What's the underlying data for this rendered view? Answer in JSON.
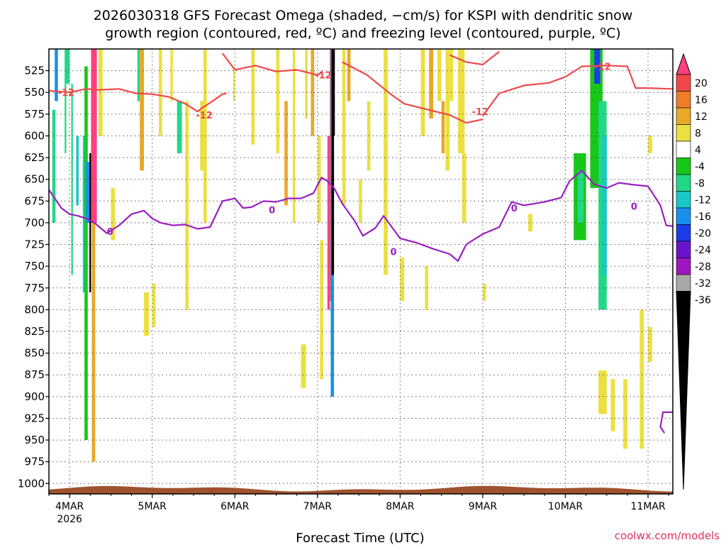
{
  "colors": {
    "dgz": "#f04848",
    "freezing": "#9a1fc0",
    "terrain": "#a0522d",
    "credit": "#e03060",
    "grid": "#888888"
  },
  "chart_data": {
    "type": "heatmap",
    "title_lines": [
      "2026030318 GFS Forecast Omega (shaded, −cm/s) for KSPI with dendritic snow",
      "growth region (contoured, red, ºC) and freezing level (contoured, purple, ºC)"
    ],
    "xlabel": "Forecast Time (UTC)",
    "credit": "coolwx.com/models",
    "x_range_days": [
      -0.25,
      7.3
    ],
    "x_ticks": [
      {
        "day": 0,
        "label": "4MAR",
        "sub": "2026"
      },
      {
        "day": 1,
        "label": "5MAR",
        "sub": ""
      },
      {
        "day": 2,
        "label": "6MAR",
        "sub": ""
      },
      {
        "day": 3,
        "label": "7MAR",
        "sub": ""
      },
      {
        "day": 4,
        "label": "8MAR",
        "sub": ""
      },
      {
        "day": 5,
        "label": "9MAR",
        "sub": ""
      },
      {
        "day": 6,
        "label": "10MAR",
        "sub": ""
      },
      {
        "day": 7,
        "label": "11MAR",
        "sub": ""
      }
    ],
    "y_range_hpa": [
      1012,
      500
    ],
    "y_ticks": [
      "525",
      "550",
      "575",
      "600",
      "625",
      "650",
      "675",
      "700",
      "725",
      "750",
      "775",
      "800",
      "825",
      "850",
      "875",
      "900",
      "925",
      "950",
      "975",
      "1000"
    ],
    "colorbar": {
      "labels": [
        "20",
        "16",
        "12",
        "8",
        "4",
        "-4",
        "-8",
        "-12",
        "-16",
        "-20",
        "-24",
        "-28",
        "-32",
        "-36"
      ],
      "colors": [
        "#ff3f7f",
        "#f04848",
        "#f07c28",
        "#e8a828",
        "#ece040",
        "#ffffff",
        "#18c818",
        "#22d888",
        "#18c8c8",
        "#1890f0",
        "#1c3ce8",
        "#6a14d0",
        "#a016c0",
        "#a8a8a8",
        "#000000"
      ]
    },
    "dgz_contour": {
      "label": "-12",
      "upper": [
        [
          -0.25,
          548
        ],
        [
          0.0,
          550
        ],
        [
          0.2,
          546
        ],
        [
          0.35,
          547
        ],
        [
          0.6,
          546
        ],
        [
          0.8,
          551
        ],
        [
          1.0,
          552
        ],
        [
          1.2,
          555
        ],
        [
          1.4,
          563
        ],
        [
          1.55,
          572
        ],
        [
          1.6,
          568
        ],
        [
          1.7,
          562
        ],
        [
          1.85,
          552
        ],
        [
          1.9,
          551
        ]
      ],
      "upper2": [
        [
          1.85,
          505
        ],
        [
          2.0,
          524
        ],
        [
          2.25,
          519
        ],
        [
          2.5,
          526
        ],
        [
          2.75,
          524
        ],
        [
          3.0,
          530
        ],
        [
          3.05,
          527
        ]
      ],
      "upper3": [
        [
          3.3,
          515
        ],
        [
          3.6,
          530
        ],
        [
          3.9,
          553
        ],
        [
          4.05,
          563
        ],
        [
          4.3,
          569
        ],
        [
          4.6,
          576
        ],
        [
          4.8,
          585
        ],
        [
          5.0,
          581
        ]
      ],
      "upper4": [
        [
          5.0,
          577
        ],
        [
          5.2,
          551
        ],
        [
          5.5,
          542
        ],
        [
          5.8,
          539
        ],
        [
          6.0,
          532
        ],
        [
          6.2,
          520
        ],
        [
          6.5,
          519
        ],
        [
          6.75,
          520
        ],
        [
          6.85,
          545
        ],
        [
          7.0,
          545
        ],
        [
          7.3,
          546
        ]
      ],
      "upper5": [
        [
          5.2,
          503
        ],
        [
          5.0,
          518
        ],
        [
          4.8,
          515
        ],
        [
          4.6,
          507
        ]
      ]
    },
    "freezing_contour": {
      "label": "0",
      "points": [
        [
          -0.25,
          662
        ],
        [
          -0.1,
          683
        ],
        [
          0.0,
          690
        ],
        [
          0.1,
          692
        ],
        [
          0.2,
          695
        ],
        [
          0.3,
          700
        ],
        [
          0.45,
          712
        ],
        [
          0.6,
          703
        ],
        [
          0.75,
          690
        ],
        [
          0.9,
          686
        ],
        [
          1.0,
          695
        ],
        [
          1.1,
          700
        ],
        [
          1.25,
          703
        ],
        [
          1.4,
          702
        ],
        [
          1.55,
          707
        ],
        [
          1.7,
          705
        ],
        [
          1.85,
          675
        ],
        [
          2.0,
          672
        ],
        [
          2.1,
          683
        ],
        [
          2.2,
          682
        ],
        [
          2.35,
          675
        ],
        [
          2.5,
          676
        ],
        [
          2.65,
          672
        ],
        [
          2.8,
          672
        ],
        [
          2.95,
          666
        ],
        [
          3.05,
          648
        ],
        [
          3.12,
          652
        ],
        [
          3.2,
          660
        ],
        [
          3.3,
          678
        ],
        [
          3.45,
          698
        ],
        [
          3.55,
          715
        ],
        [
          3.7,
          706
        ],
        [
          3.8,
          692
        ],
        [
          3.9,
          705
        ],
        [
          4.0,
          718
        ],
        [
          4.2,
          723
        ],
        [
          4.4,
          730
        ],
        [
          4.6,
          736
        ],
        [
          4.7,
          744
        ],
        [
          4.8,
          725
        ],
        [
          5.0,
          713
        ],
        [
          5.2,
          705
        ],
        [
          5.35,
          676
        ],
        [
          5.5,
          680
        ],
        [
          5.75,
          676
        ],
        [
          5.95,
          671
        ],
        [
          6.05,
          652
        ],
        [
          6.2,
          640
        ],
        [
          6.35,
          656
        ],
        [
          6.5,
          660
        ],
        [
          6.65,
          654
        ],
        [
          6.8,
          656
        ],
        [
          7.0,
          658
        ],
        [
          7.15,
          680
        ],
        [
          7.22,
          703
        ],
        [
          7.3,
          704
        ]
      ],
      "tail": [
        [
          7.2,
          942
        ],
        [
          7.15,
          935
        ],
        [
          7.18,
          918
        ],
        [
          7.3,
          918
        ]
      ]
    },
    "omega_cells": [
      {
        "d0": -0.25,
        "d1": -0.15,
        "p0": 510,
        "p1": 960,
        "c": 5
      },
      {
        "d0": -0.21,
        "d1": -0.17,
        "p0": 570,
        "p1": 700,
        "c": 7
      },
      {
        "d0": -0.18,
        "d1": -0.14,
        "p0": 500,
        "p1": 560,
        "c": 9
      },
      {
        "d0": -0.14,
        "d1": -0.08,
        "p0": 500,
        "p1": 900,
        "c": 5
      },
      {
        "d0": -0.06,
        "d1": 0.0,
        "p0": 500,
        "p1": 620,
        "c": 7
      },
      {
        "d0": -0.04,
        "d1": 0.02,
        "p0": 540,
        "p1": 880,
        "c": 5
      },
      {
        "d0": 0.02,
        "d1": 0.08,
        "p0": 540,
        "p1": 760,
        "c": 7
      },
      {
        "d0": 0.04,
        "d1": 0.1,
        "p0": 520,
        "p1": 880,
        "c": 5
      },
      {
        "d0": 0.08,
        "d1": 0.11,
        "p0": 600,
        "p1": 680,
        "c": 8
      },
      {
        "d0": 0.12,
        "d1": 0.16,
        "p0": 500,
        "p1": 640,
        "c": 5
      },
      {
        "d0": 0.16,
        "d1": 0.2,
        "p0": 600,
        "p1": 780,
        "c": 8
      },
      {
        "d0": 0.18,
        "d1": 0.22,
        "p0": 520,
        "p1": 950,
        "c": 6
      },
      {
        "d0": 0.2,
        "d1": 0.24,
        "p0": 630,
        "p1": 700,
        "c": 9
      },
      {
        "d0": 0.24,
        "d1": 0.26,
        "p0": 620,
        "p1": 780,
        "c": 14
      },
      {
        "d0": 0.26,
        "d1": 0.33,
        "p0": 500,
        "p1": 700,
        "c": 0
      },
      {
        "d0": 0.27,
        "d1": 0.31,
        "p0": 700,
        "p1": 975,
        "c": 3
      },
      {
        "d0": 0.35,
        "d1": 0.4,
        "p0": 500,
        "p1": 600,
        "c": 4
      },
      {
        "d0": 0.5,
        "d1": 0.55,
        "p0": 660,
        "p1": 720,
        "c": 4
      },
      {
        "d0": 0.72,
        "d1": 0.78,
        "p0": 800,
        "p1": 950,
        "c": 5
      },
      {
        "d0": 0.78,
        "d1": 0.82,
        "p0": 520,
        "p1": 940,
        "c": 5
      },
      {
        "d0": 0.82,
        "d1": 0.85,
        "p0": 500,
        "p1": 560,
        "c": 7
      },
      {
        "d0": 0.85,
        "d1": 0.9,
        "p0": 500,
        "p1": 640,
        "c": 3
      },
      {
        "d0": 0.9,
        "d1": 0.96,
        "p0": 780,
        "p1": 830,
        "c": 4
      },
      {
        "d0": 1.0,
        "d1": 1.04,
        "p0": 770,
        "p1": 820,
        "c": 4
      },
      {
        "d0": 1.08,
        "d1": 1.12,
        "p0": 500,
        "p1": 600,
        "c": 4
      },
      {
        "d0": 1.12,
        "d1": 1.16,
        "p0": 700,
        "p1": 880,
        "c": 5
      },
      {
        "d0": 1.16,
        "d1": 1.19,
        "p0": 760,
        "p1": 900,
        "c": 5
      },
      {
        "d0": 1.22,
        "d1": 1.25,
        "p0": 500,
        "p1": 560,
        "c": 4
      },
      {
        "d0": 1.25,
        "d1": 1.3,
        "p0": 520,
        "p1": 630,
        "c": 5
      },
      {
        "d0": 1.3,
        "d1": 1.36,
        "p0": 560,
        "p1": 620,
        "c": 7
      },
      {
        "d0": 1.36,
        "d1": 1.4,
        "p0": 500,
        "p1": 950,
        "c": 5
      },
      {
        "d0": 1.4,
        "d1": 1.44,
        "p0": 560,
        "p1": 800,
        "c": 4
      },
      {
        "d0": 1.48,
        "d1": 1.5,
        "p0": 790,
        "p1": 840,
        "c": 5
      },
      {
        "d0": 1.58,
        "d1": 1.62,
        "p0": 560,
        "p1": 640,
        "c": 4
      },
      {
        "d0": 1.62,
        "d1": 1.66,
        "p0": 500,
        "p1": 700,
        "c": 4
      },
      {
        "d0": 1.8,
        "d1": 1.84,
        "p0": 500,
        "p1": 660,
        "c": 5
      },
      {
        "d0": 1.98,
        "d1": 2.0,
        "p0": 520,
        "p1": 560,
        "c": 4
      },
      {
        "d0": 2.08,
        "d1": 2.12,
        "p0": 700,
        "p1": 900,
        "c": 5
      },
      {
        "d0": 2.2,
        "d1": 2.24,
        "p0": 500,
        "p1": 610,
        "c": 4
      },
      {
        "d0": 2.28,
        "d1": 2.32,
        "p0": 540,
        "p1": 700,
        "c": 5
      },
      {
        "d0": 2.38,
        "d1": 2.42,
        "p0": 500,
        "p1": 700,
        "c": 5
      },
      {
        "d0": 2.4,
        "d1": 2.44,
        "p0": 740,
        "p1": 880,
        "c": 5
      },
      {
        "d0": 2.5,
        "d1": 2.54,
        "p0": 500,
        "p1": 620,
        "c": 4
      },
      {
        "d0": 2.55,
        "d1": 2.59,
        "p0": 620,
        "p1": 900,
        "c": 5
      },
      {
        "d0": 2.6,
        "d1": 2.64,
        "p0": 560,
        "p1": 680,
        "c": 3
      },
      {
        "d0": 2.7,
        "d1": 2.73,
        "p0": 500,
        "p1": 700,
        "c": 4
      },
      {
        "d0": 2.75,
        "d1": 2.8,
        "p0": 620,
        "p1": 940,
        "c": 5
      },
      {
        "d0": 2.8,
        "d1": 2.86,
        "p0": 840,
        "p1": 890,
        "c": 4
      },
      {
        "d0": 2.85,
        "d1": 2.88,
        "p0": 500,
        "p1": 580,
        "c": 4
      },
      {
        "d0": 2.92,
        "d1": 2.96,
        "p0": 500,
        "p1": 600,
        "c": 3
      },
      {
        "d0": 2.95,
        "d1": 3.0,
        "p0": 640,
        "p1": 900,
        "c": 5
      },
      {
        "d0": 3.0,
        "d1": 3.04,
        "p0": 600,
        "p1": 700,
        "c": 4
      },
      {
        "d0": 3.03,
        "d1": 3.07,
        "p0": 720,
        "p1": 880,
        "c": 4
      },
      {
        "d0": 3.1,
        "d1": 3.12,
        "p0": 500,
        "p1": 900,
        "c": 5
      },
      {
        "d0": 3.12,
        "d1": 3.15,
        "p0": 600,
        "p1": 800,
        "c": 0
      },
      {
        "d0": 3.15,
        "d1": 3.16,
        "p0": 500,
        "p1": 790,
        "c": 1
      },
      {
        "d0": 3.16,
        "d1": 3.2,
        "p0": 500,
        "p1": 900,
        "c": 9
      },
      {
        "d0": 3.17,
        "d1": 3.21,
        "p0": 500,
        "p1": 760,
        "c": 14
      },
      {
        "d0": 3.2,
        "d1": 3.24,
        "p0": 600,
        "p1": 920,
        "c": 5
      },
      {
        "d0": 3.24,
        "d1": 3.28,
        "p0": 700,
        "p1": 880,
        "c": 5
      },
      {
        "d0": 3.3,
        "d1": 3.34,
        "p0": 500,
        "p1": 680,
        "c": 4
      },
      {
        "d0": 3.36,
        "d1": 3.4,
        "p0": 500,
        "p1": 560,
        "c": 3
      },
      {
        "d0": 3.5,
        "d1": 3.54,
        "p0": 650,
        "p1": 700,
        "c": 4
      },
      {
        "d0": 3.6,
        "d1": 3.64,
        "p0": 560,
        "p1": 640,
        "c": 4
      },
      {
        "d0": 3.8,
        "d1": 3.85,
        "p0": 500,
        "p1": 760,
        "c": 4
      },
      {
        "d0": 3.85,
        "d1": 3.9,
        "p0": 660,
        "p1": 740,
        "c": 5
      },
      {
        "d0": 4.0,
        "d1": 4.05,
        "p0": 740,
        "p1": 790,
        "c": 4
      },
      {
        "d0": 4.25,
        "d1": 4.3,
        "p0": 500,
        "p1": 600,
        "c": 4
      },
      {
        "d0": 4.3,
        "d1": 4.34,
        "p0": 750,
        "p1": 800,
        "c": 4
      },
      {
        "d0": 4.35,
        "d1": 4.4,
        "p0": 500,
        "p1": 580,
        "c": 3
      },
      {
        "d0": 4.45,
        "d1": 4.5,
        "p0": 500,
        "p1": 560,
        "c": 4
      },
      {
        "d0": 4.5,
        "d1": 4.54,
        "p0": 560,
        "p1": 620,
        "c": 3
      },
      {
        "d0": 4.55,
        "d1": 4.6,
        "p0": 500,
        "p1": 640,
        "c": 4
      },
      {
        "d0": 4.6,
        "d1": 4.64,
        "p0": 500,
        "p1": 560,
        "c": 4
      },
      {
        "d0": 4.7,
        "d1": 4.78,
        "p0": 500,
        "p1": 620,
        "c": 4
      },
      {
        "d0": 4.75,
        "d1": 4.8,
        "p0": 620,
        "p1": 700,
        "c": 4
      },
      {
        "d0": 4.82,
        "d1": 4.86,
        "p0": 620,
        "p1": 640,
        "c": 5
      },
      {
        "d0": 4.85,
        "d1": 4.9,
        "p0": 780,
        "p1": 900,
        "c": 5
      },
      {
        "d0": 5.0,
        "d1": 5.04,
        "p0": 770,
        "p1": 790,
        "c": 4
      },
      {
        "d0": 5.55,
        "d1": 5.6,
        "p0": 690,
        "p1": 710,
        "c": 4
      },
      {
        "d0": 5.75,
        "d1": 5.8,
        "p0": 760,
        "p1": 780,
        "c": 5
      },
      {
        "d0": 5.8,
        "d1": 6.0,
        "p0": 520,
        "p1": 620,
        "c": 5
      },
      {
        "d0": 5.95,
        "d1": 6.05,
        "p0": 500,
        "p1": 660,
        "c": 5
      },
      {
        "d0": 6.05,
        "d1": 6.5,
        "p0": 500,
        "p1": 820,
        "c": 5
      },
      {
        "d0": 6.1,
        "d1": 6.25,
        "p0": 620,
        "p1": 720,
        "c": 6
      },
      {
        "d0": 6.15,
        "d1": 6.22,
        "p0": 640,
        "p1": 700,
        "c": 7
      },
      {
        "d0": 6.3,
        "d1": 6.45,
        "p0": 500,
        "p1": 660,
        "c": 6
      },
      {
        "d0": 6.35,
        "d1": 6.42,
        "p0": 500,
        "p1": 540,
        "c": 10
      },
      {
        "d0": 6.4,
        "d1": 6.5,
        "p0": 560,
        "p1": 800,
        "c": 7
      },
      {
        "d0": 6.45,
        "d1": 6.5,
        "p0": 600,
        "p1": 760,
        "c": 8
      },
      {
        "d0": 6.5,
        "d1": 6.6,
        "p0": 500,
        "p1": 600,
        "c": 5
      },
      {
        "d0": 6.6,
        "d1": 6.7,
        "p0": 640,
        "p1": 700,
        "c": 5
      },
      {
        "d0": 6.7,
        "d1": 6.78,
        "p0": 640,
        "p1": 760,
        "c": 5
      },
      {
        "d0": 6.8,
        "d1": 6.95,
        "p0": 640,
        "p1": 700,
        "c": 5
      },
      {
        "d0": 6.8,
        "d1": 6.9,
        "p0": 500,
        "p1": 520,
        "c": 5
      },
      {
        "d0": 6.95,
        "d1": 7.05,
        "p0": 640,
        "p1": 700,
        "c": 5
      },
      {
        "d0": 7.0,
        "d1": 7.05,
        "p0": 600,
        "p1": 620,
        "c": 4
      },
      {
        "d0": 7.15,
        "d1": 7.3,
        "p0": 630,
        "p1": 700,
        "c": 5
      },
      {
        "d0": 6.4,
        "d1": 6.5,
        "p0": 870,
        "p1": 920,
        "c": 4
      },
      {
        "d0": 6.55,
        "d1": 6.6,
        "p0": 880,
        "p1": 940,
        "c": 4
      },
      {
        "d0": 6.7,
        "d1": 6.75,
        "p0": 880,
        "p1": 960,
        "c": 4
      },
      {
        "d0": 6.9,
        "d1": 6.95,
        "p0": 800,
        "p1": 960,
        "c": 4
      },
      {
        "d0": 7.0,
        "d1": 7.05,
        "p0": 820,
        "p1": 860,
        "c": 4
      }
    ]
  }
}
